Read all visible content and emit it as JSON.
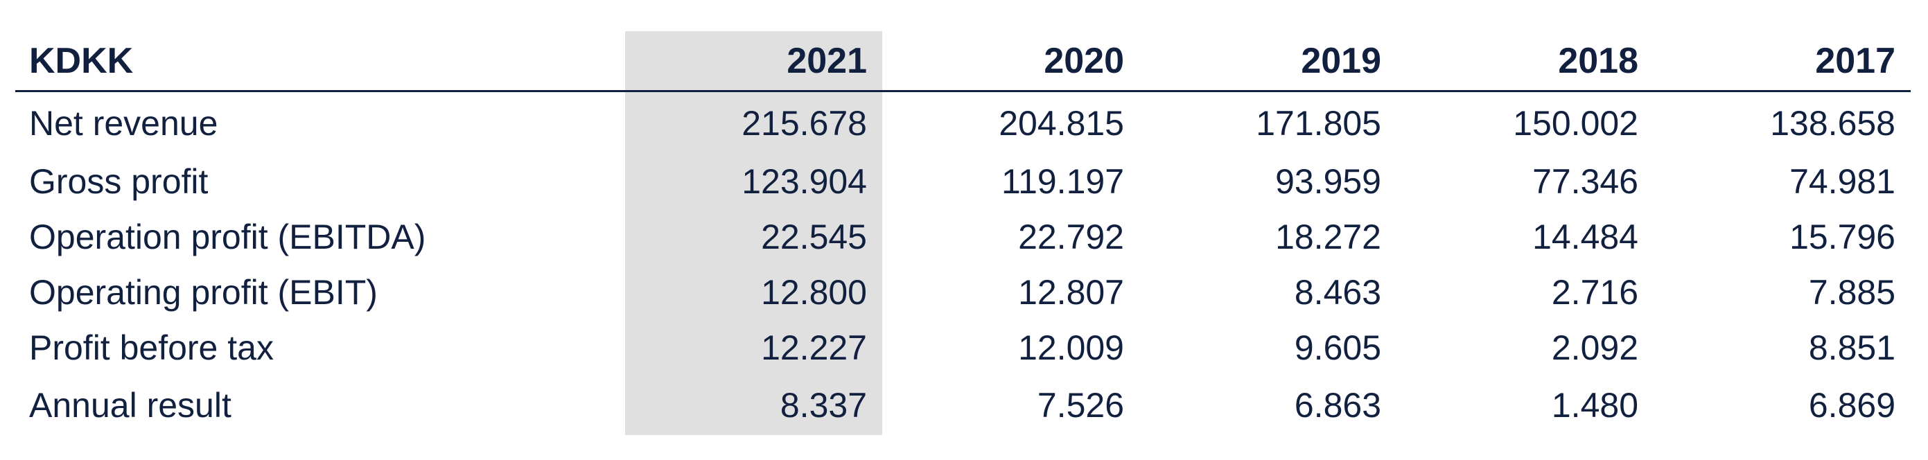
{
  "table": {
    "header": {
      "label": "KDKK",
      "years": [
        "2021",
        "2020",
        "2019",
        "2018",
        "2017"
      ]
    },
    "rows": [
      {
        "label": "Net revenue",
        "values": [
          "215.678",
          "204.815",
          "171.805",
          "150.002",
          "138.658"
        ]
      },
      {
        "label": "Gross profit",
        "values": [
          "123.904",
          "119.197",
          "93.959",
          "77.346",
          "74.981"
        ]
      },
      {
        "label": "Operation profit (EBITDA)",
        "values": [
          "22.545",
          "22.792",
          "18.272",
          "14.484",
          "15.796"
        ]
      },
      {
        "label": "Operating profit (EBIT)",
        "values": [
          "12.800",
          "12.807",
          "8.463",
          "2.716",
          "7.885"
        ]
      },
      {
        "label": "Profit before tax",
        "values": [
          "12.227",
          "12.009",
          "9.605",
          "2.092",
          "8.851"
        ]
      },
      {
        "label": "Annual result",
        "values": [
          "8.337",
          "7.526",
          "6.863",
          "1.480",
          "6.869"
        ]
      }
    ],
    "highlight_color": "#e0e0e0",
    "text_color": "#12203f"
  }
}
